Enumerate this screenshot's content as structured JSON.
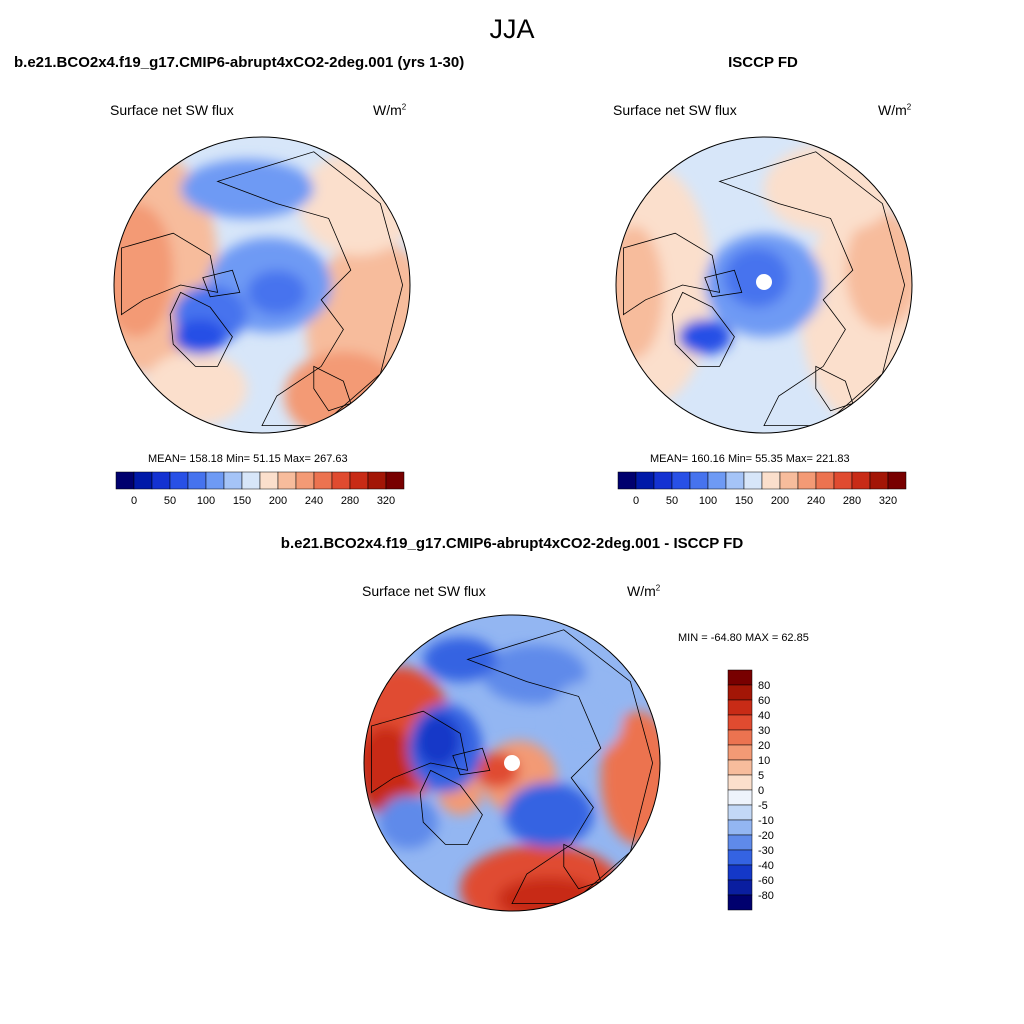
{
  "figure": {
    "title": "JJA"
  },
  "panels": [
    {
      "title": "b.e21.BCO2x4.f19_g17.CMIP6-abrupt4xCO2-2deg.001 (yrs 1-30)",
      "variable": "Surface net SW flux",
      "units_base": "W/m",
      "units_exp": "2",
      "stats": "MEAN= 158.18  Min=  51.15  Max= 267.63"
    },
    {
      "title": "ISCCP FD",
      "variable": "Surface net SW flux",
      "units_base": "W/m",
      "units_exp": "2",
      "stats": "MEAN= 160.16  Min=  55.35  Max= 221.83"
    },
    {
      "title": "b.e21.BCO2x4.f19_g17.CMIP6-abrupt4xCO2-2deg.001 - ISCCP FD",
      "variable": "Surface net SW flux",
      "units_base": "W/m",
      "units_exp": "2",
      "stats": "MIN = -64.80 MAX =  62.85"
    }
  ],
  "chart_data": [
    {
      "type": "heatmap",
      "projection": "north polar stereographic",
      "title": "b.e21.BCO2x4.f19_g17.CMIP6-abrupt4xCO2-2deg.001 (yrs 1-30)",
      "variable": "Surface net SW flux",
      "units": "W/m2",
      "mean": 158.18,
      "min": 51.15,
      "max": 267.63,
      "colorbar": {
        "orientation": "horizontal",
        "tick_labels": [
          "0",
          "50",
          "100",
          "150",
          "200",
          "240",
          "280",
          "320"
        ],
        "colors": [
          "#00006e",
          "#0019a8",
          "#1432d2",
          "#2850e6",
          "#4673ee",
          "#6e9af4",
          "#a5c4f7",
          "#d7e6f9",
          "#fbdfcc",
          "#f7bc9c",
          "#f39a75",
          "#ec7350",
          "#e04b30",
          "#c82b16",
          "#a31606",
          "#780000"
        ]
      }
    },
    {
      "type": "heatmap",
      "projection": "north polar stereographic",
      "title": "ISCCP FD",
      "variable": "Surface net SW flux",
      "units": "W/m2",
      "mean": 160.16,
      "min": 55.35,
      "max": 221.83,
      "colorbar": {
        "orientation": "horizontal",
        "tick_labels": [
          "0",
          "50",
          "100",
          "150",
          "200",
          "240",
          "280",
          "320"
        ],
        "colors": [
          "#00006e",
          "#0019a8",
          "#1432d2",
          "#2850e6",
          "#4673ee",
          "#6e9af4",
          "#a5c4f7",
          "#d7e6f9",
          "#fbdfcc",
          "#f7bc9c",
          "#f39a75",
          "#ec7350",
          "#e04b30",
          "#c82b16",
          "#a31606",
          "#780000"
        ]
      }
    },
    {
      "type": "heatmap",
      "projection": "north polar stereographic",
      "title": "b.e21.BCO2x4.f19_g17.CMIP6-abrupt4xCO2-2deg.001 - ISCCP FD",
      "variable": "Surface net SW flux",
      "units": "W/m2",
      "min": -64.8,
      "max": 62.85,
      "colorbar": {
        "orientation": "vertical",
        "tick_labels": [
          "80",
          "60",
          "40",
          "30",
          "20",
          "10",
          "5",
          "0",
          "-5",
          "-10",
          "-20",
          "-30",
          "-40",
          "-60",
          "-80"
        ],
        "colors": [
          "#780000",
          "#a31606",
          "#c82b16",
          "#e04b30",
          "#ec7350",
          "#f39a75",
          "#f7bc9c",
          "#fbdfcc",
          "#eef3fb",
          "#c3d8f6",
          "#93b6f2",
          "#5f8aea",
          "#3463e2",
          "#1438c8",
          "#0a1ea0",
          "#00006e"
        ]
      }
    }
  ]
}
